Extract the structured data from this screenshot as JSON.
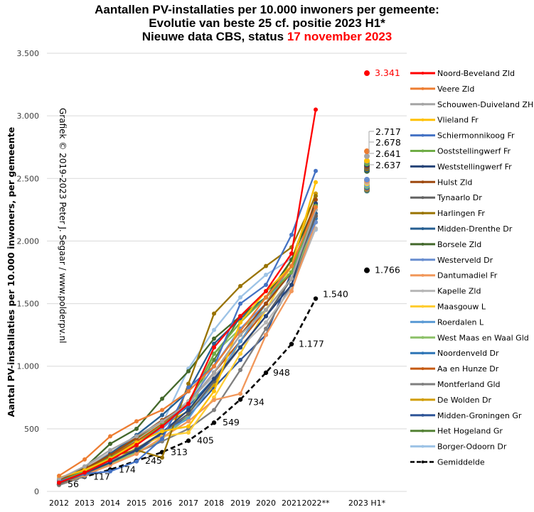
{
  "title": {
    "line1": "Aantallen PV-installaties  per 10.000 inwoners per gemeente:",
    "line2": "Evolutie van beste 25 cf. positie 2023 H1*",
    "line3_prefix": "Nieuwe data CBS, status ",
    "line3_date": "17 november 2023"
  },
  "credit": "Grafiek © 2019-2023 Peter J. Segaar / www.polderpv.nl",
  "chart_data": {
    "type": "line",
    "title": "Aantallen PV-installaties per 10.000 inwoners per gemeente: Evolutie van beste 25 cf. positie 2023 H1* — Nieuwe data CBS, status 17 november 2023",
    "xlabel": "",
    "ylabel": "Aantal PV-installaties per 10.000 inwoners, per gemeente",
    "ylim": [
      0,
      3500
    ],
    "yticks": [
      0,
      500,
      1000,
      1500,
      2000,
      2500,
      3000,
      3500
    ],
    "ytick_labels": [
      "0",
      "500",
      "1.000",
      "1.500",
      "2.000",
      "2.500",
      "3.000",
      "3.500"
    ],
    "grid": true,
    "legend_position": "right",
    "categories": [
      "2012",
      "2013",
      "2014",
      "2015",
      "2016",
      "2017",
      "2018",
      "2019",
      "2020",
      "2021",
      "2022**",
      "2023 H1*"
    ],
    "series": [
      {
        "name": "Noord-Beveland Zld",
        "color": "#ff0000",
        "values": [
          70,
          150,
          250,
          370,
          520,
          700,
          1150,
          1400,
          1600,
          1900,
          3050
        ],
        "h1": 3341
      },
      {
        "name": "Veere Zld",
        "color": "#ed7d31",
        "values": [
          125,
          255,
          440,
          560,
          650,
          800,
          1000,
          1280,
          1550,
          1800,
          2270
        ],
        "h1": 2717
      },
      {
        "name": "Schouwen-Duiveland ZH",
        "color": "#a5a5a5",
        "values": [
          100,
          200,
          330,
          440,
          560,
          700,
          950,
          1250,
          1450,
          1700,
          2250
        ],
        "h1": 2678
      },
      {
        "name": "Vlieland Fr",
        "color": "#ffc000",
        "values": [
          110,
          170,
          260,
          390,
          480,
          520,
          800,
          1350,
          1600,
          1800,
          2470
        ],
        "h1": 2641
      },
      {
        "name": "Schiermonnikoog Fr",
        "color": "#4472c4",
        "values": [
          80,
          140,
          160,
          240,
          420,
          830,
          1000,
          1500,
          1650,
          2050,
          2560
        ],
        "h1": 2637
      },
      {
        "name": "Ooststellingwerf Fr",
        "color": "#70ad47",
        "values": [
          80,
          160,
          270,
          380,
          530,
          700,
          1100,
          1350,
          1550,
          1750,
          2280
        ],
        "h1": 2620
      },
      {
        "name": "Weststellingwerf Fr",
        "color": "#264478",
        "values": [
          70,
          150,
          230,
          330,
          470,
          650,
          900,
          1150,
          1400,
          1650,
          2300
        ],
        "h1": 2610
      },
      {
        "name": "Hulst Zld",
        "color": "#9e480e",
        "values": [
          90,
          180,
          290,
          430,
          570,
          700,
          950,
          1250,
          1500,
          1750,
          2330
        ],
        "h1": 2600
      },
      {
        "name": "Tynaarlo Dr",
        "color": "#636363",
        "values": [
          60,
          140,
          230,
          340,
          470,
          620,
          880,
          1150,
          1400,
          1700,
          2200
        ],
        "h1": 2590
      },
      {
        "name": "Harlingen Fr",
        "color": "#997300",
        "values": [
          90,
          180,
          280,
          330,
          270,
          860,
          1420,
          1640,
          1800,
          1950,
          2360
        ],
        "h1": 2580
      },
      {
        "name": "Midden-Drenthe Dr",
        "color": "#255e91",
        "values": [
          80,
          170,
          300,
          450,
          610,
          800,
          1180,
          1380,
          1550,
          1800,
          2220
        ],
        "h1": 2570
      },
      {
        "name": "Borsele Zld",
        "color": "#43682b",
        "values": [
          90,
          190,
          380,
          500,
          740,
          960,
          1220,
          1400,
          1550,
          1850,
          2300
        ],
        "h1": 2560
      },
      {
        "name": "Westerveld Dr",
        "color": "#698ed0",
        "values": [
          80,
          170,
          260,
          380,
          500,
          700,
          1000,
          1300,
          1500,
          1750,
          2150
        ],
        "h1": 2490
      },
      {
        "name": "Dantumadiel Fr",
        "color": "#f1975a",
        "values": [
          60,
          130,
          210,
          300,
          430,
          560,
          730,
          780,
          1250,
          1600,
          2150
        ],
        "h1": 2480
      },
      {
        "name": "Kapelle Zld",
        "color": "#b7b7b7",
        "values": [
          90,
          190,
          310,
          430,
          560,
          720,
          920,
          1150,
          1350,
          1620,
          2100
        ],
        "h1": 2470
      },
      {
        "name": "Maasgouw L",
        "color": "#ffcd33",
        "values": [
          70,
          140,
          230,
          350,
          440,
          470,
          750,
          1100,
          1450,
          1800,
          2250
        ],
        "h1": 2460
      },
      {
        "name": "Roerdalen L",
        "color": "#5b9bd5",
        "values": [
          70,
          140,
          240,
          330,
          470,
          580,
          880,
          1200,
          1500,
          1800,
          2200
        ],
        "h1": 2450
      },
      {
        "name": "West Maas en Waal Gld",
        "color": "#8cc168",
        "values": [
          60,
          130,
          220,
          310,
          420,
          600,
          1100,
          1300,
          1450,
          1700,
          2150
        ],
        "h1": 2440
      },
      {
        "name": "Noordenveld Dr",
        "color": "#2e75b6",
        "values": [
          70,
          150,
          260,
          380,
          520,
          680,
          900,
          1150,
          1400,
          1700,
          2180
        ],
        "h1": 2430
      },
      {
        "name": "Aa en Hunze Dr",
        "color": "#c55a11",
        "values": [
          80,
          170,
          280,
          400,
          540,
          700,
          950,
          1200,
          1450,
          1700,
          2200
        ],
        "h1": 2425
      },
      {
        "name": "Montferland Gld",
        "color": "#7f7f7f",
        "values": [
          50,
          120,
          220,
          310,
          400,
          500,
          650,
          970,
          1300,
          1650,
          2150
        ],
        "h1": 2420
      },
      {
        "name": "De Wolden Dr",
        "color": "#d09c00",
        "values": [
          100,
          170,
          270,
          400,
          530,
          640,
          850,
          1200,
          1500,
          1850,
          2380
        ],
        "h1": 2415
      },
      {
        "name": "Midden-Groningen Gr",
        "color": "#2f5597",
        "values": [
          80,
          160,
          250,
          320,
          460,
          600,
          830,
          1050,
          1250,
          1750,
          2150
        ],
        "h1": 2410
      },
      {
        "name": "Het Hogeland Gr",
        "color": "#548235",
        "values": [
          80,
          170,
          290,
          420,
          560,
          720,
          1050,
          1400,
          1600,
          1750,
          2290
        ],
        "h1": 2405
      },
      {
        "name": "Borger-Odoorn Dr",
        "color": "#9dc3e6",
        "values": [
          100,
          180,
          300,
          400,
          540,
          980,
          1290,
          1550,
          1730,
          1860,
          2090
        ],
        "h1": 2400
      },
      {
        "name": "Gemiddelde",
        "color": "#000000",
        "dashed": true,
        "values": [
          56,
          117,
          174,
          245,
          313,
          405,
          549,
          734,
          948,
          1177,
          1540
        ],
        "h1": 1766
      }
    ],
    "data_labels": {
      "gemiddelde": [
        "56",
        "117",
        "174",
        "245",
        "313",
        "405",
        "549",
        "734",
        "948",
        "1.177",
        "1.540"
      ],
      "h1_top": "3.341",
      "h1_cluster": [
        "2.717",
        "2.678",
        "2.641",
        "2.637"
      ],
      "h1_avg": "1.766"
    }
  }
}
